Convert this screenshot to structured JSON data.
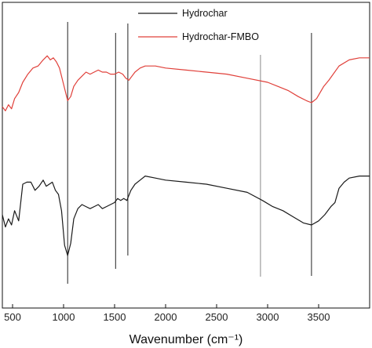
{
  "chart_data": {
    "type": "line",
    "xlabel": "Wavenumber (cm⁻¹)",
    "ylabel": "",
    "xlim": [
      400,
      4000
    ],
    "xticks": [
      500,
      1000,
      1500,
      2000,
      2500,
      3000,
      3500
    ],
    "y_axis_ticks": "none",
    "grid": false,
    "legend_position": "top-center",
    "vertical_markers": [
      1040,
      1510,
      1630,
      2930,
      3430
    ],
    "series": [
      {
        "name": "Hydrochar",
        "color": "#1a1a1a",
        "x": [
          400,
          430,
          460,
          490,
          520,
          560,
          600,
          640,
          680,
          720,
          760,
          800,
          830,
          860,
          890,
          920,
          950,
          980,
          1010,
          1040,
          1070,
          1100,
          1140,
          1180,
          1220,
          1260,
          1300,
          1340,
          1380,
          1420,
          1460,
          1500,
          1530,
          1560,
          1590,
          1620,
          1660,
          1700,
          1750,
          1800,
          1900,
          2000,
          2200,
          2400,
          2600,
          2800,
          2950,
          3050,
          3150,
          3250,
          3350,
          3430,
          3500,
          3560,
          3620,
          3660,
          3700,
          3750,
          3800,
          3900,
          4000
        ],
        "y": [
          10,
          4,
          8,
          5,
          12,
          7,
          25,
          26,
          26,
          22,
          24,
          27,
          24,
          25,
          26,
          22,
          20,
          12,
          -5,
          -10,
          -4,
          8,
          13,
          15,
          14,
          13,
          14,
          15,
          13,
          14,
          15,
          16,
          18,
          17,
          18,
          17,
          22,
          25,
          27,
          29,
          28,
          27,
          26,
          25,
          23,
          21,
          17,
          14,
          12,
          9,
          6,
          5,
          7,
          10,
          14,
          16,
          23,
          26,
          28,
          29,
          29
        ]
      },
      {
        "name": "Hydrochar-FMBO",
        "color": "#e0403a",
        "x": [
          400,
          430,
          460,
          490,
          520,
          560,
          600,
          650,
          700,
          750,
          800,
          840,
          870,
          900,
          930,
          960,
          990,
          1020,
          1040,
          1070,
          1100,
          1140,
          1180,
          1220,
          1260,
          1300,
          1340,
          1380,
          1420,
          1460,
          1500,
          1540,
          1580,
          1610,
          1640,
          1670,
          1700,
          1750,
          1800,
          1900,
          2000,
          2200,
          2400,
          2600,
          2800,
          3000,
          3100,
          3200,
          3300,
          3380,
          3430,
          3480,
          3550,
          3600,
          3700,
          3800,
          3900,
          4000
        ],
        "y": [
          63,
          61,
          64,
          62,
          67,
          70,
          75,
          79,
          82,
          83,
          86,
          88,
          86,
          87,
          85,
          82,
          76,
          70,
          66,
          68,
          73,
          76,
          78,
          80,
          79,
          80,
          81,
          80,
          80,
          79,
          79,
          80,
          79,
          77,
          76,
          78,
          80,
          82,
          83,
          83,
          82,
          81,
          80,
          79,
          77,
          75,
          73,
          71,
          68,
          66,
          65,
          67,
          73,
          76,
          83,
          86,
          87,
          87
        ]
      }
    ]
  }
}
